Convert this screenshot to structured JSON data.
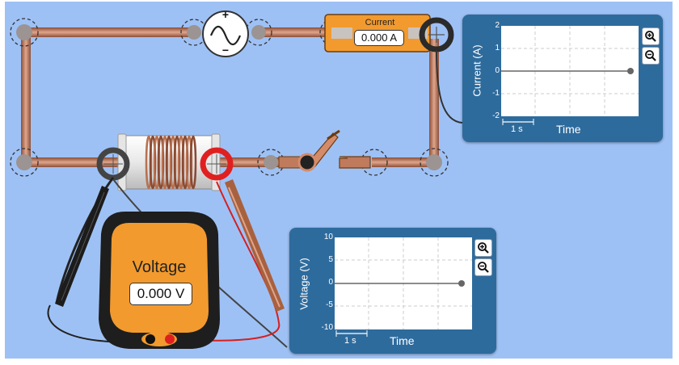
{
  "ammeter": {
    "title": "Current",
    "value": "0.000 A"
  },
  "voltmeter": {
    "title": "Voltage",
    "value": "0.000 V"
  },
  "current_chart": {
    "ylabel": "Current (A)",
    "xlabel": "Time",
    "scale_label": "1 s",
    "y_ticks": [
      "2",
      "1",
      "0",
      "-1",
      "-2"
    ]
  },
  "voltage_chart": {
    "ylabel": "Voltage (V)",
    "xlabel": "Time",
    "scale_label": "1 s",
    "y_ticks": [
      "10",
      "5",
      "0",
      "-5",
      "-10"
    ]
  },
  "icons": {
    "zoom_in": "zoom-in-icon",
    "zoom_out": "zoom-out-icon",
    "ac_source": "ac-sine-icon"
  },
  "colors": {
    "background": "#9ec1f5",
    "wire": "#c07a5c",
    "meter_body": "#f29a2e",
    "panel": "#2e6b9d",
    "red_probe": "#e02020"
  }
}
